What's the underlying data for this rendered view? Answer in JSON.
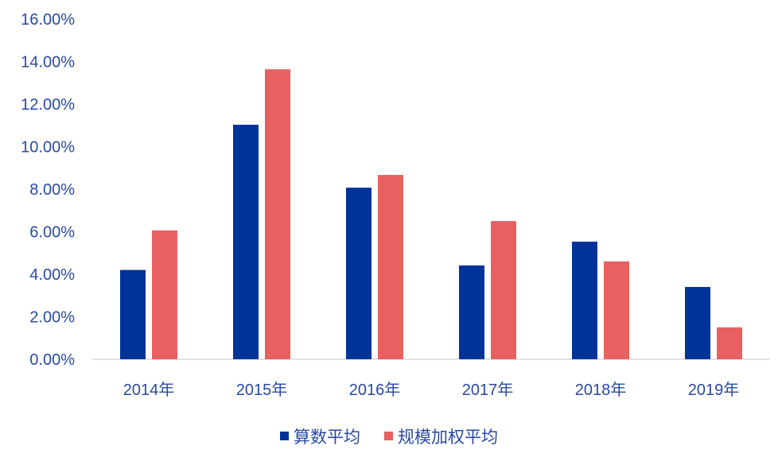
{
  "chart_data": {
    "type": "bar",
    "title": "",
    "xlabel": "",
    "ylabel": "",
    "categories": [
      "2014年",
      "2015年",
      "2016年",
      "2017年",
      "2018年",
      "2019年"
    ],
    "series": [
      {
        "name": "算数平均",
        "color": "#003399",
        "values": [
          4.2,
          11.03,
          8.07,
          4.41,
          5.53,
          3.4
        ]
      },
      {
        "name": "规模加权平均",
        "color": "#E86060",
        "values": [
          6.06,
          13.64,
          8.67,
          6.5,
          4.6,
          1.5
        ]
      }
    ],
    "ylim": [
      0,
      16
    ],
    "yticks": [
      "0.00%",
      "2.00%",
      "4.00%",
      "6.00%",
      "8.00%",
      "10.00%",
      "12.00%",
      "14.00%",
      "16.00%"
    ],
    "grid": false,
    "legend_position": "bottom",
    "text_color": "#2A4AA0"
  }
}
